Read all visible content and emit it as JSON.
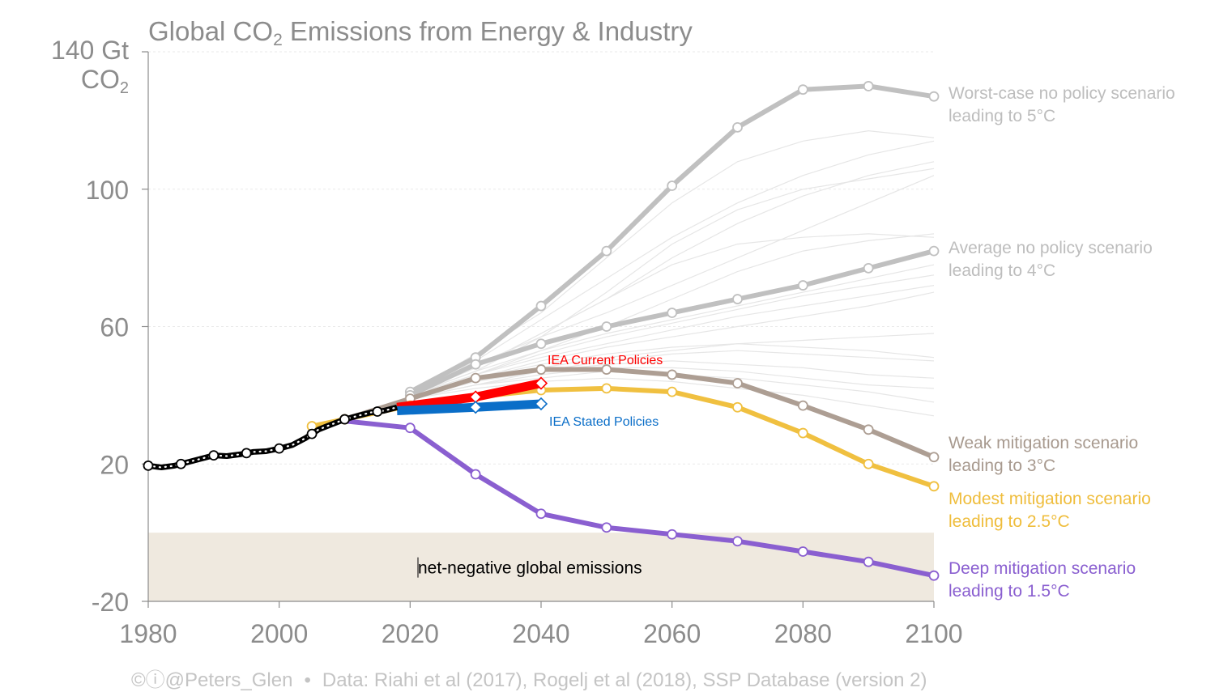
{
  "title": {
    "pre": "Global CO",
    "sub": "2",
    "post": " Emissions from Energy & Industry"
  },
  "yunit": {
    "line1": "140 Gt",
    "line2_pre": "CO",
    "line2_sub": "2"
  },
  "footer": {
    "handle": "©ⓘ@Peters_Glen",
    "bullet": "•",
    "source": "Data: Riahi et al (2017), Rogelj et al (2018), SSP Database (version 2)"
  },
  "colors": {
    "axis": "#8c8c8c",
    "historical": "#000000",
    "worst": "#c0c0c0",
    "average": "#c0c0c0",
    "weak": "#ad9e93",
    "modest": "#f0c040",
    "deep": "#8a5fd0",
    "iea_current": "#ff0000",
    "iea_stated": "#0a6ec8",
    "negative_band": "#efe9df",
    "background_lines": "#e6e6e6"
  },
  "chart_data": {
    "type": "line",
    "title": "Global CO2 Emissions from Energy & Industry",
    "ylabel": "140 Gt CO2",
    "xlim": [
      1980,
      2100
    ],
    "ylim": [
      -20,
      140
    ],
    "xticks": [
      "1980",
      "2000",
      "2020",
      "2040",
      "2060",
      "2080",
      "2100"
    ],
    "yticks": [
      "140 Gt",
      "100",
      "60",
      "20",
      "-20"
    ],
    "ytick_values": [
      140,
      100,
      60,
      20,
      -20
    ],
    "band": {
      "label": "net-negative global emissions",
      "from": -20,
      "to": 0
    },
    "historical": {
      "x": [
        1980,
        1982,
        1984,
        1986,
        1988,
        1990,
        1992,
        1994,
        1996,
        1998,
        2000,
        2002,
        2004,
        2006,
        2008,
        2010,
        2012,
        2014,
        2016,
        2018
      ],
      "y": [
        19.5,
        19.0,
        19.5,
        20.5,
        21.5,
        22.5,
        22.3,
        22.8,
        23.5,
        23.7,
        24.5,
        25.5,
        27.5,
        30.0,
        31.5,
        33.0,
        34.0,
        35.0,
        35.5,
        36.5
      ],
      "markers": [
        1980,
        1985,
        1990,
        1995,
        2000,
        2005,
        2010,
        2015
      ]
    },
    "series": [
      {
        "key": "worst",
        "label1": "Worst-case no policy scenario",
        "label2": "leading to 5°C",
        "x": [
          2020,
          2030,
          2040,
          2050,
          2060,
          2070,
          2080,
          2090,
          2100
        ],
        "y": [
          41,
          51,
          66,
          82,
          101,
          118,
          129,
          130,
          127
        ]
      },
      {
        "key": "average",
        "label1": "Average no policy scenario",
        "label2": "leading to 4°C",
        "x": [
          2020,
          2030,
          2040,
          2050,
          2060,
          2070,
          2080,
          2090,
          2100
        ],
        "y": [
          40,
          49,
          55,
          60,
          64,
          68,
          72,
          77,
          82
        ]
      },
      {
        "key": "weak",
        "label1": "Weak mitigation scenario",
        "label2": "leading to 3°C",
        "x": [
          2010,
          2020,
          2030,
          2040,
          2050,
          2060,
          2070,
          2080,
          2090,
          2100
        ],
        "y": [
          33,
          39,
          45,
          47.5,
          47.5,
          46,
          43.5,
          37,
          30,
          22
        ]
      },
      {
        "key": "modest",
        "label1": "Modest mitigation scenario",
        "label2": "leading to 2.5°C",
        "x": [
          2005,
          2010,
          2020,
          2030,
          2040,
          2050,
          2060,
          2070,
          2080,
          2090,
          2100
        ],
        "y": [
          31,
          33,
          37,
          39.5,
          41.5,
          42,
          41,
          36.5,
          29,
          20,
          13.5
        ]
      },
      {
        "key": "deep",
        "label1": "Deep mitigation scenario",
        "label2": "leading to 1.5°C",
        "x": [
          2010,
          2020,
          2030,
          2040,
          2050,
          2060,
          2070,
          2080,
          2090,
          2100
        ],
        "y": [
          32.5,
          30.5,
          17,
          5.5,
          1.5,
          -0.5,
          -2.5,
          -5.5,
          -8.5,
          -12.5
        ]
      }
    ],
    "iea": [
      {
        "key": "iea_current",
        "label": "IEA Current Policies",
        "x": [
          2018,
          2030,
          2040
        ],
        "y": [
          36.5,
          39.5,
          43.5
        ]
      },
      {
        "key": "iea_stated",
        "label": "IEA Stated Policies",
        "x": [
          2018,
          2030,
          2040
        ],
        "y": [
          35.5,
          36.5,
          37.5
        ]
      }
    ],
    "background_scenarios": [
      [
        41,
        52,
        64,
        80,
        96,
        108,
        114,
        117,
        115
      ],
      [
        40,
        50,
        62,
        74,
        86,
        96,
        104,
        110,
        114
      ],
      [
        40,
        48,
        58,
        68,
        80,
        90,
        98,
        104,
        108
      ],
      [
        40,
        49,
        57,
        64,
        72,
        80,
        88,
        96,
        104
      ],
      [
        40,
        47,
        53,
        58,
        62,
        66,
        70,
        74,
        78
      ],
      [
        40,
        46,
        52,
        57,
        61,
        65,
        69,
        72,
        75
      ],
      [
        40,
        46,
        51,
        55,
        59,
        63,
        66,
        69,
        72
      ],
      [
        40,
        45,
        50,
        54,
        57,
        60,
        63,
        66,
        70
      ],
      [
        40,
        44,
        48,
        51,
        53,
        55,
        56,
        57,
        58
      ],
      [
        40,
        45,
        49,
        52,
        54,
        55,
        54,
        53,
        51
      ],
      [
        39,
        44,
        47,
        49,
        50,
        49,
        48,
        46,
        45
      ],
      [
        39,
        43,
        46,
        48,
        48,
        47,
        45,
        43,
        42
      ],
      [
        39,
        43,
        45,
        47,
        46,
        45,
        43,
        41,
        38
      ],
      [
        39,
        42,
        44,
        45,
        44,
        42,
        40,
        37,
        34
      ],
      [
        40,
        47,
        57,
        70,
        84,
        94,
        100,
        103,
        106
      ],
      [
        39,
        43,
        47,
        50,
        52,
        53,
        52,
        51,
        50
      ],
      [
        40,
        46,
        53,
        60,
        68,
        76,
        82,
        85,
        87
      ],
      [
        40,
        48,
        58,
        68,
        78,
        84,
        86,
        87,
        86
      ]
    ],
    "grid": true
  }
}
